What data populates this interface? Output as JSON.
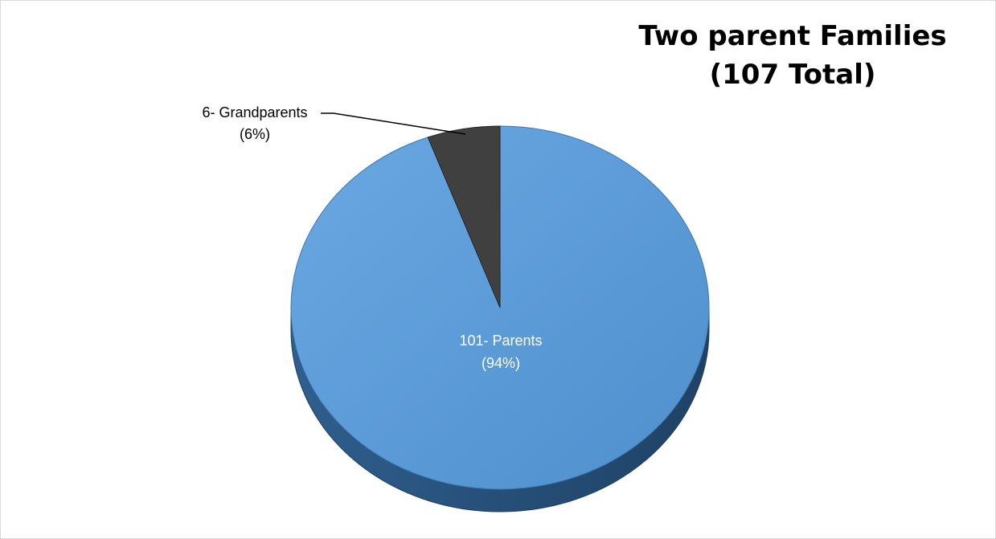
{
  "chart_data": {
    "type": "pie",
    "title_line1": "Two parent Families",
    "title_line2": "(107 Total)",
    "slices": [
      {
        "name": "Parents",
        "value": 101,
        "label_line1": "101- Parents",
        "label_line2": "(94%)",
        "color": "#5b9bd5"
      },
      {
        "name": "Grandparents",
        "value": 6,
        "label_line1": "6- Grandparents",
        "label_line2": "(6%)",
        "color": "#404040"
      }
    ],
    "style": "3d",
    "legend": "none"
  }
}
